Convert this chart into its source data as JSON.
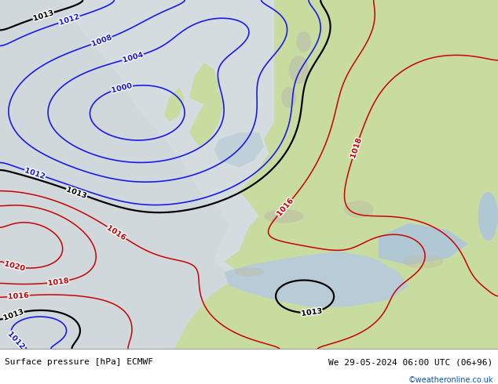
{
  "title_left": "Surface pressure [hPa] ECMWF",
  "title_right": "We 29-05-2024 06:00 UTC (06+96)",
  "credit": "©weatheronline.co.uk",
  "land_color": "#c8dca0",
  "ocean_color": "#dce8e0",
  "sea_color": "#b8ccd8",
  "bar_color": "#e8e8e8",
  "fig_width": 6.34,
  "fig_height": 4.9,
  "dpi": 100
}
